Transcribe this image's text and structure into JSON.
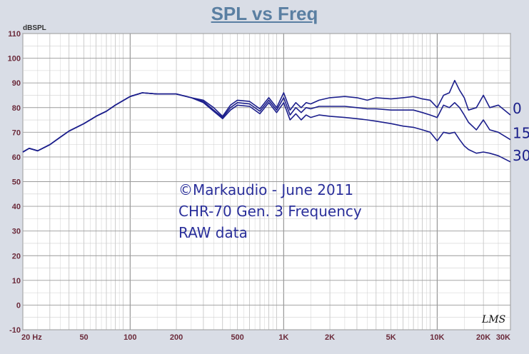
{
  "chart_data": {
    "type": "line",
    "title": "SPL vs Freq",
    "ylabel": "dBSPL",
    "xlabel": "",
    "x_scale": "log",
    "xlim": [
      20,
      30000
    ],
    "ylim": [
      -10,
      110
    ],
    "grid": true,
    "yticks": [
      -10,
      0,
      10,
      20,
      30,
      40,
      50,
      60,
      70,
      80,
      90,
      100,
      110
    ],
    "ytick_labels": [
      "-10",
      "0",
      "10",
      "20",
      "30",
      "40",
      "50",
      "60",
      "70",
      "80",
      "90",
      "100",
      "110"
    ],
    "xticks": [
      20,
      50,
      100,
      200,
      500,
      1000,
      2000,
      5000,
      10000,
      20000,
      30000
    ],
    "xtick_labels": [
      "20 Hz",
      "50",
      "100",
      "200",
      "500",
      "1K",
      "2K",
      "5K",
      "10K",
      "20K",
      "30K"
    ],
    "annotations": [
      "©Markaudio - June 2011",
      "CHR-70 Gen. 3 Frequency",
      "RAW data"
    ],
    "signature": "LMS",
    "colors": {
      "series": "#1c1f8c",
      "grid": "#a9a9a9",
      "ticks": "#6b2a3a",
      "title": "#5a7fa2"
    },
    "series": [
      {
        "name": "0",
        "x": [
          20,
          22,
          25,
          30,
          35,
          40,
          50,
          60,
          70,
          80,
          100,
          120,
          150,
          200,
          250,
          300,
          350,
          400,
          450,
          500,
          600,
          700,
          800,
          900,
          1000,
          1100,
          1200,
          1300,
          1400,
          1500,
          1700,
          2000,
          2500,
          3000,
          3500,
          4000,
          5000,
          6000,
          7000,
          8000,
          9000,
          10000,
          11000,
          12000,
          13000,
          14000,
          15000,
          16000,
          18000,
          20000,
          22000,
          25000,
          30000
        ],
        "y": [
          62,
          63.5,
          62.5,
          65,
          68,
          70.5,
          73.5,
          76.5,
          78.5,
          81,
          84.5,
          86,
          85.5,
          85.5,
          84,
          83,
          80,
          76.5,
          81,
          83,
          82.5,
          79.5,
          84,
          80,
          86,
          79,
          82,
          80,
          82,
          81.5,
          83,
          84,
          84.5,
          84,
          83,
          84,
          83.5,
          84,
          84.5,
          83.5,
          83,
          80,
          85,
          86,
          91,
          87,
          84,
          79,
          80,
          85,
          80,
          81,
          77
        ]
      },
      {
        "name": "15",
        "x": [
          20,
          22,
          25,
          30,
          35,
          40,
          50,
          60,
          70,
          80,
          100,
          120,
          150,
          200,
          250,
          300,
          350,
          400,
          450,
          500,
          600,
          700,
          800,
          900,
          1000,
          1100,
          1200,
          1300,
          1400,
          1500,
          1700,
          2000,
          2500,
          3000,
          3500,
          4000,
          5000,
          6000,
          7000,
          8000,
          9000,
          10000,
          11000,
          12000,
          13000,
          14000,
          15000,
          16000,
          18000,
          20000,
          22000,
          25000,
          30000
        ],
        "y": [
          62,
          63.5,
          62.5,
          65,
          68,
          70.5,
          73.5,
          76.5,
          78.5,
          81,
          84.5,
          86,
          85.5,
          85.5,
          84,
          82.5,
          79,
          76,
          80,
          82,
          81.5,
          78.5,
          83,
          79,
          84,
          77,
          80,
          78,
          80,
          79.5,
          80.5,
          80.5,
          80.5,
          80,
          79.5,
          79.5,
          79,
          79,
          79,
          78,
          77,
          76,
          81,
          80,
          82,
          80,
          77,
          74,
          71,
          75,
          71,
          70,
          67
        ]
      },
      {
        "name": "30",
        "x": [
          20,
          22,
          25,
          30,
          35,
          40,
          50,
          60,
          70,
          80,
          100,
          120,
          150,
          200,
          250,
          300,
          350,
          400,
          450,
          500,
          600,
          700,
          800,
          900,
          1000,
          1100,
          1200,
          1300,
          1400,
          1500,
          1700,
          2000,
          2500,
          3000,
          3500,
          4000,
          5000,
          6000,
          7000,
          8000,
          9000,
          10000,
          11000,
          12000,
          13000,
          14000,
          15000,
          16000,
          18000,
          20000,
          22000,
          25000,
          30000
        ],
        "y": [
          62,
          63.5,
          62.5,
          65,
          68,
          70.5,
          73.5,
          76.5,
          78.5,
          81,
          84.5,
          86,
          85.5,
          85.5,
          84,
          82,
          78.5,
          75.5,
          79,
          81,
          80.5,
          77.5,
          82,
          78,
          82,
          75,
          77.5,
          75,
          77,
          76,
          77,
          76.5,
          76,
          75.5,
          75,
          74.5,
          73.5,
          72.5,
          72,
          71,
          70,
          66.5,
          70,
          69.5,
          70,
          67,
          64.5,
          63,
          61.5,
          62,
          61.5,
          60.5,
          58
        ]
      }
    ]
  }
}
